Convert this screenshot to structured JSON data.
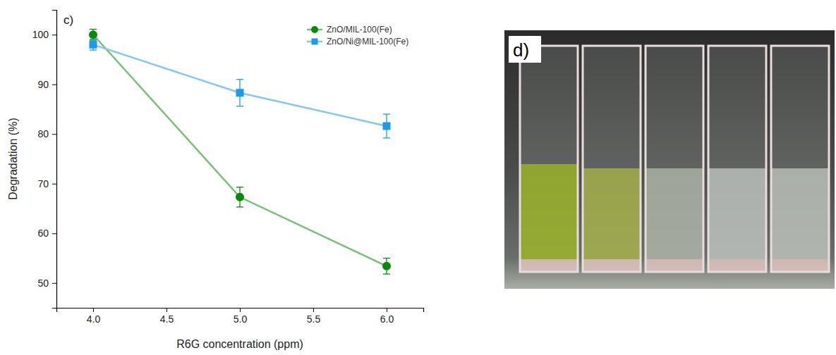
{
  "chart_data": {
    "type": "line",
    "panel_label": "c)",
    "x_label": "R6G concentration (ppm)",
    "y_label": "Degradation (%)",
    "x": [
      4.0,
      5.0,
      6.0
    ],
    "series": [
      {
        "name": "ZnO/MIL-100(Fe)",
        "color": "#0a8a0a",
        "marker": "circle",
        "line_style": "solid",
        "values": [
          100,
          67.3,
          53.4
        ],
        "errors": [
          1.1,
          2.0,
          1.6
        ]
      },
      {
        "name": "ZnO/Ni@MIL-100(Fe)",
        "color": "#1e9be8",
        "marker": "square",
        "line_style": "solid",
        "values": [
          98,
          88.3,
          81.6
        ],
        "errors": [
          1.1,
          2.7,
          2.4
        ]
      }
    ],
    "xlim": [
      3.75,
      6.25
    ],
    "xticks": [
      {
        "value": 4,
        "label": "4.0"
      },
      {
        "value": 4.5,
        "label": "4.5"
      },
      {
        "value": 5,
        "label": "5.0"
      },
      {
        "value": 5.5,
        "label": "5.5"
      },
      {
        "value": 6,
        "label": "6.0"
      }
    ],
    "ylim": [
      45,
      105
    ],
    "yticks": [
      50,
      60,
      70,
      80,
      90,
      100
    ],
    "grid": false,
    "legend": "upper right"
  },
  "photo": {
    "panel_label": "d)"
  }
}
